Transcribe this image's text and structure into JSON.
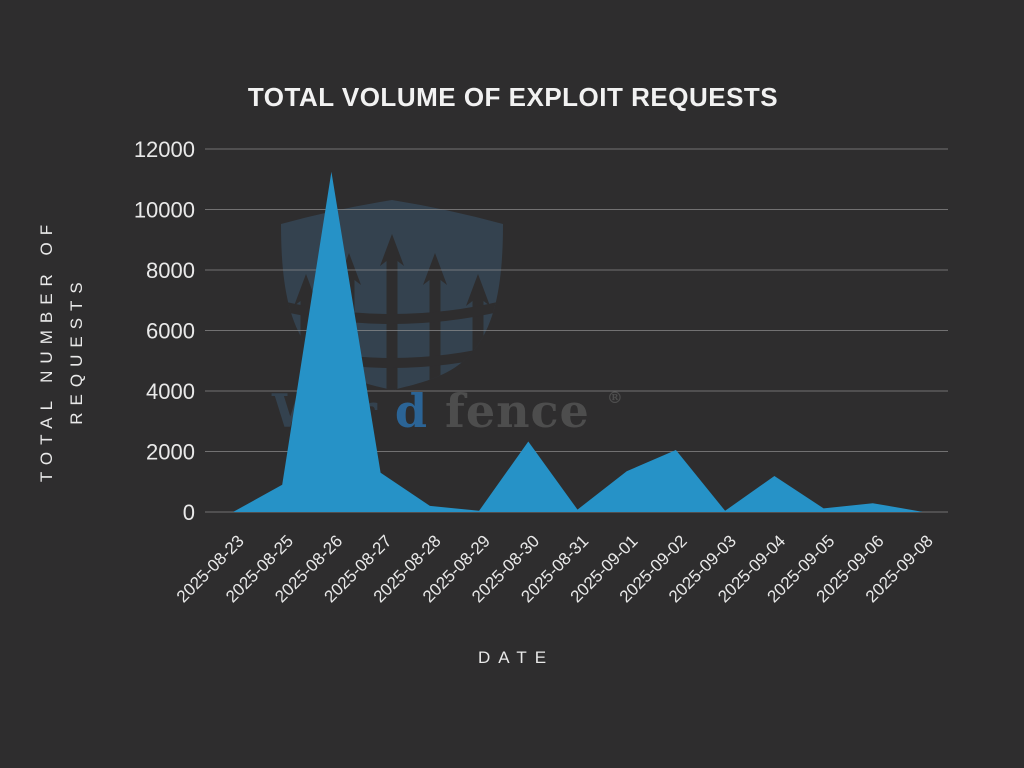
{
  "chart_data": {
    "type": "area",
    "title": "TOTAL VOLUME OF EXPLOIT REQUESTS",
    "xlabel": "DATE",
    "ylabel": "TOTAL NUMBER OF REQUESTS",
    "ylabel_lines": [
      "TOTAL NUMBER OF",
      "REQUESTS"
    ],
    "x": [
      "2025-08-23",
      "2025-08-25",
      "2025-08-26",
      "2025-08-27",
      "2025-08-28",
      "2025-08-29",
      "2025-08-30",
      "2025-08-31",
      "2025-09-01",
      "2025-09-02",
      "2025-09-03",
      "2025-09-04",
      "2025-09-05",
      "2025-09-06",
      "2025-09-08"
    ],
    "values": [
      0,
      900,
      11250,
      1300,
      200,
      40,
      2330,
      80,
      1350,
      2050,
      40,
      1190,
      120,
      290,
      10
    ],
    "ylim": [
      0,
      12000
    ],
    "yticks": [
      0,
      2000,
      4000,
      6000,
      8000,
      10000,
      12000
    ],
    "grid": true,
    "legend": "none",
    "area_color": "#2692c7",
    "background_color": "#2e2d2e",
    "gridline_color": "#8f8f8f",
    "text_color": "#e9e9e9"
  },
  "watermark": {
    "brand_prefix": "Wor",
    "brand_d": "d",
    "brand_suffix": "fence",
    "registered_mark": "®",
    "shield_color": "#34424f",
    "accent_blue": "#2b6496",
    "text_gray": "#4d4d4d"
  }
}
